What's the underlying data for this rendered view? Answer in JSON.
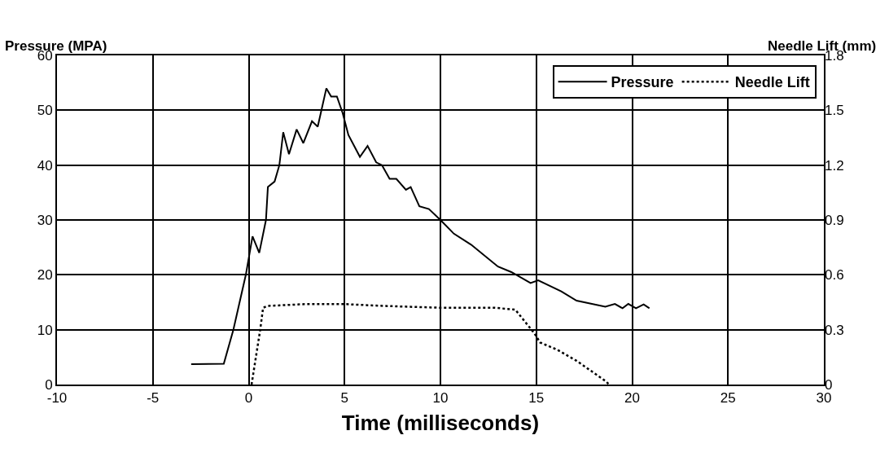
{
  "chart_data": {
    "type": "line",
    "xlabel": "Time (milliseconds)",
    "ylabel": "Pressure (MPA)",
    "y2label": "Needle Lift (mm)",
    "xlim": [
      -10,
      30
    ],
    "xticks": [
      -10,
      -5,
      0,
      5,
      10,
      15,
      20,
      25,
      30
    ],
    "ylim": [
      0,
      60
    ],
    "yticks": [
      0,
      10,
      20,
      30,
      40,
      50,
      60
    ],
    "y2lim": [
      0,
      1.8
    ],
    "y2ticks": [
      0,
      0.3,
      0.6,
      0.9,
      1.2,
      1.5,
      1.8
    ],
    "grid": true,
    "legend": "top right",
    "series": [
      {
        "name": "Pressure",
        "color": "#000000",
        "line_style": "solid",
        "x": [
          -3,
          -1.3,
          -0.8,
          -0.15,
          0.2,
          0.55,
          0.9,
          1.0,
          1.35,
          1.6,
          1.8,
          2.1,
          2.5,
          2.85,
          3.3,
          3.6,
          4.05,
          4.3,
          4.6,
          4.9,
          5.2,
          5.8,
          6.2,
          6.65,
          6.95,
          7.35,
          7.7,
          8.2,
          8.45,
          8.9,
          9.4,
          10,
          10.7,
          11.6,
          13,
          13.7,
          14.7,
          15.1,
          16.3,
          17.1,
          18.6,
          19.1,
          19.5,
          19.8,
          20.2,
          20.6,
          20.9
        ],
        "values": [
          3.7,
          3.8,
          10,
          20,
          27,
          24,
          30,
          36,
          37,
          40,
          46,
          42,
          46.5,
          44,
          48,
          47,
          54,
          52.5,
          52.5,
          49.5,
          45.5,
          41.5,
          43.5,
          40.5,
          40,
          37.5,
          37.5,
          35.5,
          36,
          32.5,
          32,
          30,
          27.5,
          25.5,
          21.5,
          20.5,
          18.5,
          19,
          17,
          15.3,
          14.2,
          14.7,
          13.9,
          14.7,
          13.9,
          14.6,
          13.9
        ]
      },
      {
        "name": "Needle Lift",
        "color": "#000000",
        "line_style": "dotted",
        "axis": "y2",
        "x": [
          0.15,
          0.6,
          0.75,
          1,
          3,
          5,
          7,
          10,
          12.8,
          13.9,
          14.9,
          15.2,
          16.1,
          17.1,
          18.6,
          18.8
        ],
        "values": [
          0,
          0.3,
          0.42,
          0.43,
          0.44,
          0.44,
          0.43,
          0.42,
          0.42,
          0.41,
          0.28,
          0.23,
          0.19,
          0.13,
          0.02,
          0
        ]
      }
    ]
  }
}
